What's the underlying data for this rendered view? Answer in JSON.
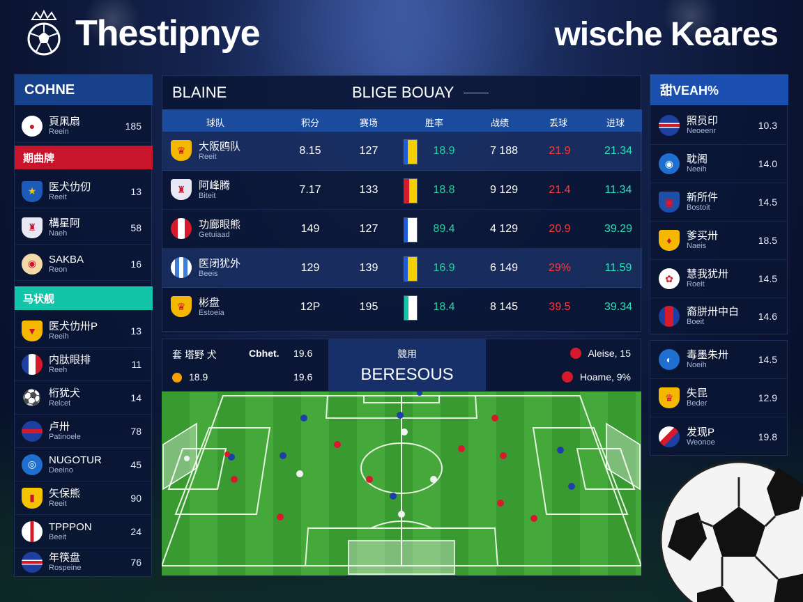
{
  "header": {
    "title": "Thestipnye",
    "subtitle": "wische Keares"
  },
  "left_panel": {
    "title": "COHNE",
    "top_row": {
      "name": "頁凩扇",
      "sub": "Reein",
      "value": "185"
    },
    "section_red": "期曲牌",
    "group1": [
      {
        "name": "医犬仂仞",
        "sub": "Reeit",
        "value": "13"
      },
      {
        "name": "構星阿",
        "sub": "Naeh",
        "value": "58"
      },
      {
        "name": "SAKBA",
        "sub": "Reon",
        "value": "16"
      }
    ],
    "section_teal": "马状舰",
    "group2": [
      {
        "name": "医犬仂卅P",
        "sub": "Reeih",
        "value": "13"
      },
      {
        "name": "内肽眼排",
        "sub": "Reeh",
        "value": "11"
      },
      {
        "name": "桁犹犬",
        "sub": "Relcet",
        "value": "14"
      },
      {
        "name": "卢卅",
        "sub": "Patinoele",
        "value": "78"
      },
      {
        "name": "NUGOTUR",
        "sub": "Deeino",
        "value": "45"
      },
      {
        "name": "矢保熊",
        "sub": "Reeit",
        "value": "90"
      },
      {
        "name": "TPPPON",
        "sub": "Beeit",
        "value": "24"
      },
      {
        "name": "年筷盘",
        "sub": "Rospeine",
        "value": "76"
      }
    ]
  },
  "table": {
    "tab_left": "BLAINE",
    "tab_right": "BLIGE BOUAY",
    "columns": [
      "球队",
      "积分",
      "赛场",
      "胜率",
      "战绩",
      "丢球",
      "进球"
    ],
    "rows": [
      {
        "name": "大阪鸥队",
        "sub": "Reeit",
        "c1": "8.15",
        "c2": "127",
        "c3": "18.9",
        "c4": "7 188",
        "c5": "21.9",
        "c6": "21.34"
      },
      {
        "name": "阿峰腾",
        "sub": "Biteit",
        "c1": "7.17",
        "c2": "133",
        "c3": "18.8",
        "c4": "9 129",
        "c5": "21.4",
        "c6": "11.34"
      },
      {
        "name": "功廊眼熊",
        "sub": "Getuiaad",
        "c1": "149",
        "c2": "127",
        "c3": "89.4",
        "c4": "4 129",
        "c5": "20.9",
        "c6": "39.29"
      },
      {
        "name": "医闭犹外",
        "sub": "Beeis",
        "c1": "129",
        "c2": "139",
        "c3": "16.9",
        "c4": "6 149",
        "c5": "29%",
        "c6": "11.59"
      },
      {
        "name": "彬盘",
        "sub": "Estoeia",
        "c1": "12P",
        "c2": "195",
        "c3": "18.4",
        "c4": "8 145",
        "c5": "39.5",
        "c6": "39.34"
      }
    ]
  },
  "match": {
    "line1_label": "套 塔野 犬",
    "line1_mid": "Cbhet.",
    "line1_val": "19.6",
    "line2_val": "18.9",
    "line2_mid": "19.6",
    "center_label": "競用",
    "center_name": "BERESOUS",
    "right1": "Aleise, 15",
    "right2": "Hoame, 9%"
  },
  "right_panel": {
    "title": "甜VEAH%",
    "items": [
      {
        "name": "照员印",
        "sub": "Neoeenr",
        "value": "10.3"
      },
      {
        "name": "耽阁",
        "sub": "Neeih",
        "value": "14.0"
      },
      {
        "name": "新所件",
        "sub": "Bostoit",
        "value": "14.5"
      },
      {
        "name": "爹买卅",
        "sub": "Naeis",
        "value": "18.5"
      },
      {
        "name": "慧我犹卅",
        "sub": "Roeit",
        "value": "14.5"
      },
      {
        "name": "裔胼卅中白",
        "sub": "Boeit",
        "value": "14.6"
      }
    ],
    "items2": [
      {
        "name": "毒墨朱卅",
        "sub": "Noeih",
        "value": "14.5"
      },
      {
        "name": "失昆",
        "sub": "Beder",
        "value": "12.9"
      },
      {
        "name": "发现P",
        "sub": "Weonoe",
        "value": "19.8"
      }
    ]
  },
  "colors": {
    "accent_blue": "#17418a",
    "accent_red": "#c8152c",
    "accent_teal": "#12c4a8",
    "positive": "#27d3a0",
    "negative": "#ff3a3a"
  }
}
